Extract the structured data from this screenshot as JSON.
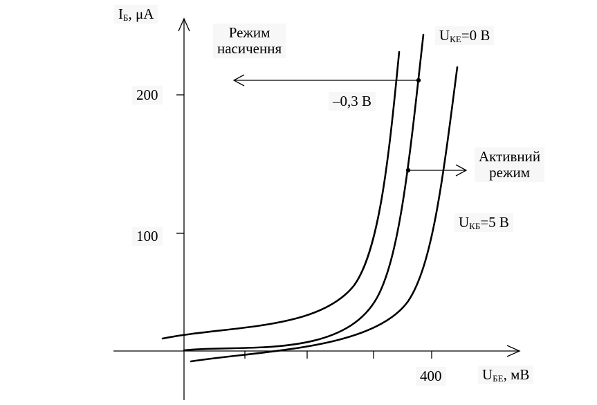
{
  "axes": {
    "y_label_main": "I",
    "y_label_sub": "Б",
    "y_label_unit": ", μA",
    "x_label_main": "U",
    "x_label_sub": "БЕ",
    "x_label_unit": ",  мВ",
    "y_ticks": [
      "200",
      "100"
    ],
    "x_tick": "400"
  },
  "curves": [
    {
      "label_main": "U",
      "label_sub": "КЕ",
      "label_value": "=0 В"
    },
    {
      "label": "–0,3 В"
    },
    {
      "label_main": "U",
      "label_sub": "КБ",
      "label_value": "=5 В"
    }
  ],
  "annotations": {
    "saturation_line1": "Режим",
    "saturation_line2": "насичення",
    "active_line1": "Активний",
    "active_line2": "режим"
  }
}
